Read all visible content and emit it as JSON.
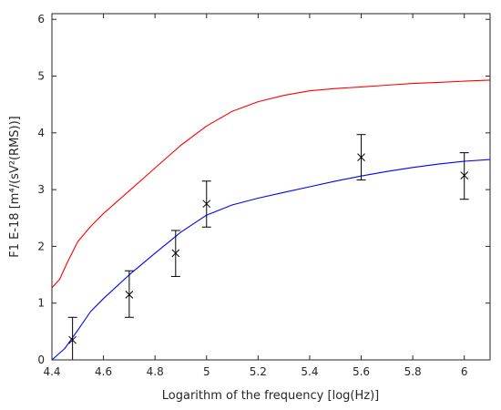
{
  "chart_data": {
    "type": "line",
    "title": "",
    "xlabel": "Logarithm of the frequency [log(Hz)]",
    "ylabel": "F1 E-18 [m⁴/(sV²(RMS))]",
    "xlim": [
      4.4,
      6.1
    ],
    "ylim": [
      0,
      6.1
    ],
    "xticks": [
      4.4,
      4.6,
      4.8,
      5,
      5.2,
      5.4,
      5.6,
      5.8,
      6
    ],
    "xtick_labels": [
      "4.4",
      "4.6",
      "4.8",
      "5",
      "5.2",
      "5.4",
      "5.6",
      "5.8",
      "6"
    ],
    "yticks": [
      0,
      1,
      2,
      3,
      4,
      5,
      6
    ],
    "ytick_labels": [
      "0",
      "1",
      "2",
      "3",
      "4",
      "5",
      "6"
    ],
    "grid": false,
    "series": [
      {
        "color": "#ff0000",
        "x": [
          4.4,
          4.43,
          4.46,
          4.5,
          4.55,
          4.6,
          4.7,
          4.8,
          4.9,
          5.0,
          5.1,
          5.2,
          5.3,
          5.4,
          5.5,
          5.6,
          5.7,
          5.8,
          5.9,
          6.0,
          6.1
        ],
        "y": [
          1.27,
          1.42,
          1.72,
          2.08,
          2.35,
          2.58,
          2.98,
          3.38,
          3.78,
          4.12,
          4.38,
          4.55,
          4.66,
          4.74,
          4.78,
          4.81,
          4.84,
          4.87,
          4.89,
          4.91,
          4.93
        ]
      },
      {
        "color": "#0000ff",
        "x": [
          4.4,
          4.45,
          4.5,
          4.55,
          4.6,
          4.7,
          4.8,
          4.9,
          5.0,
          5.1,
          5.2,
          5.3,
          5.4,
          5.5,
          5.6,
          5.7,
          5.8,
          5.9,
          6.0,
          6.1
        ],
        "y": [
          0.0,
          0.2,
          0.52,
          0.85,
          1.08,
          1.5,
          1.88,
          2.25,
          2.55,
          2.73,
          2.85,
          2.95,
          3.05,
          3.15,
          3.24,
          3.32,
          3.39,
          3.45,
          3.5,
          3.53
        ]
      }
    ],
    "markers": {
      "marker": "x",
      "color": "#000000",
      "points": [
        {
          "x": 4.48,
          "y": 0.35,
          "err_low": 0.0,
          "err_high": 0.75
        },
        {
          "x": 4.7,
          "y": 1.15,
          "err_low": 0.75,
          "err_high": 1.57
        },
        {
          "x": 4.88,
          "y": 1.88,
          "err_low": 1.47,
          "err_high": 2.28
        },
        {
          "x": 5.0,
          "y": 2.75,
          "err_low": 2.34,
          "err_high": 3.15
        },
        {
          "x": 5.6,
          "y": 3.57,
          "err_low": 3.17,
          "err_high": 3.97
        },
        {
          "x": 6.0,
          "y": 3.25,
          "err_low": 2.83,
          "err_high": 3.65
        }
      ]
    }
  }
}
